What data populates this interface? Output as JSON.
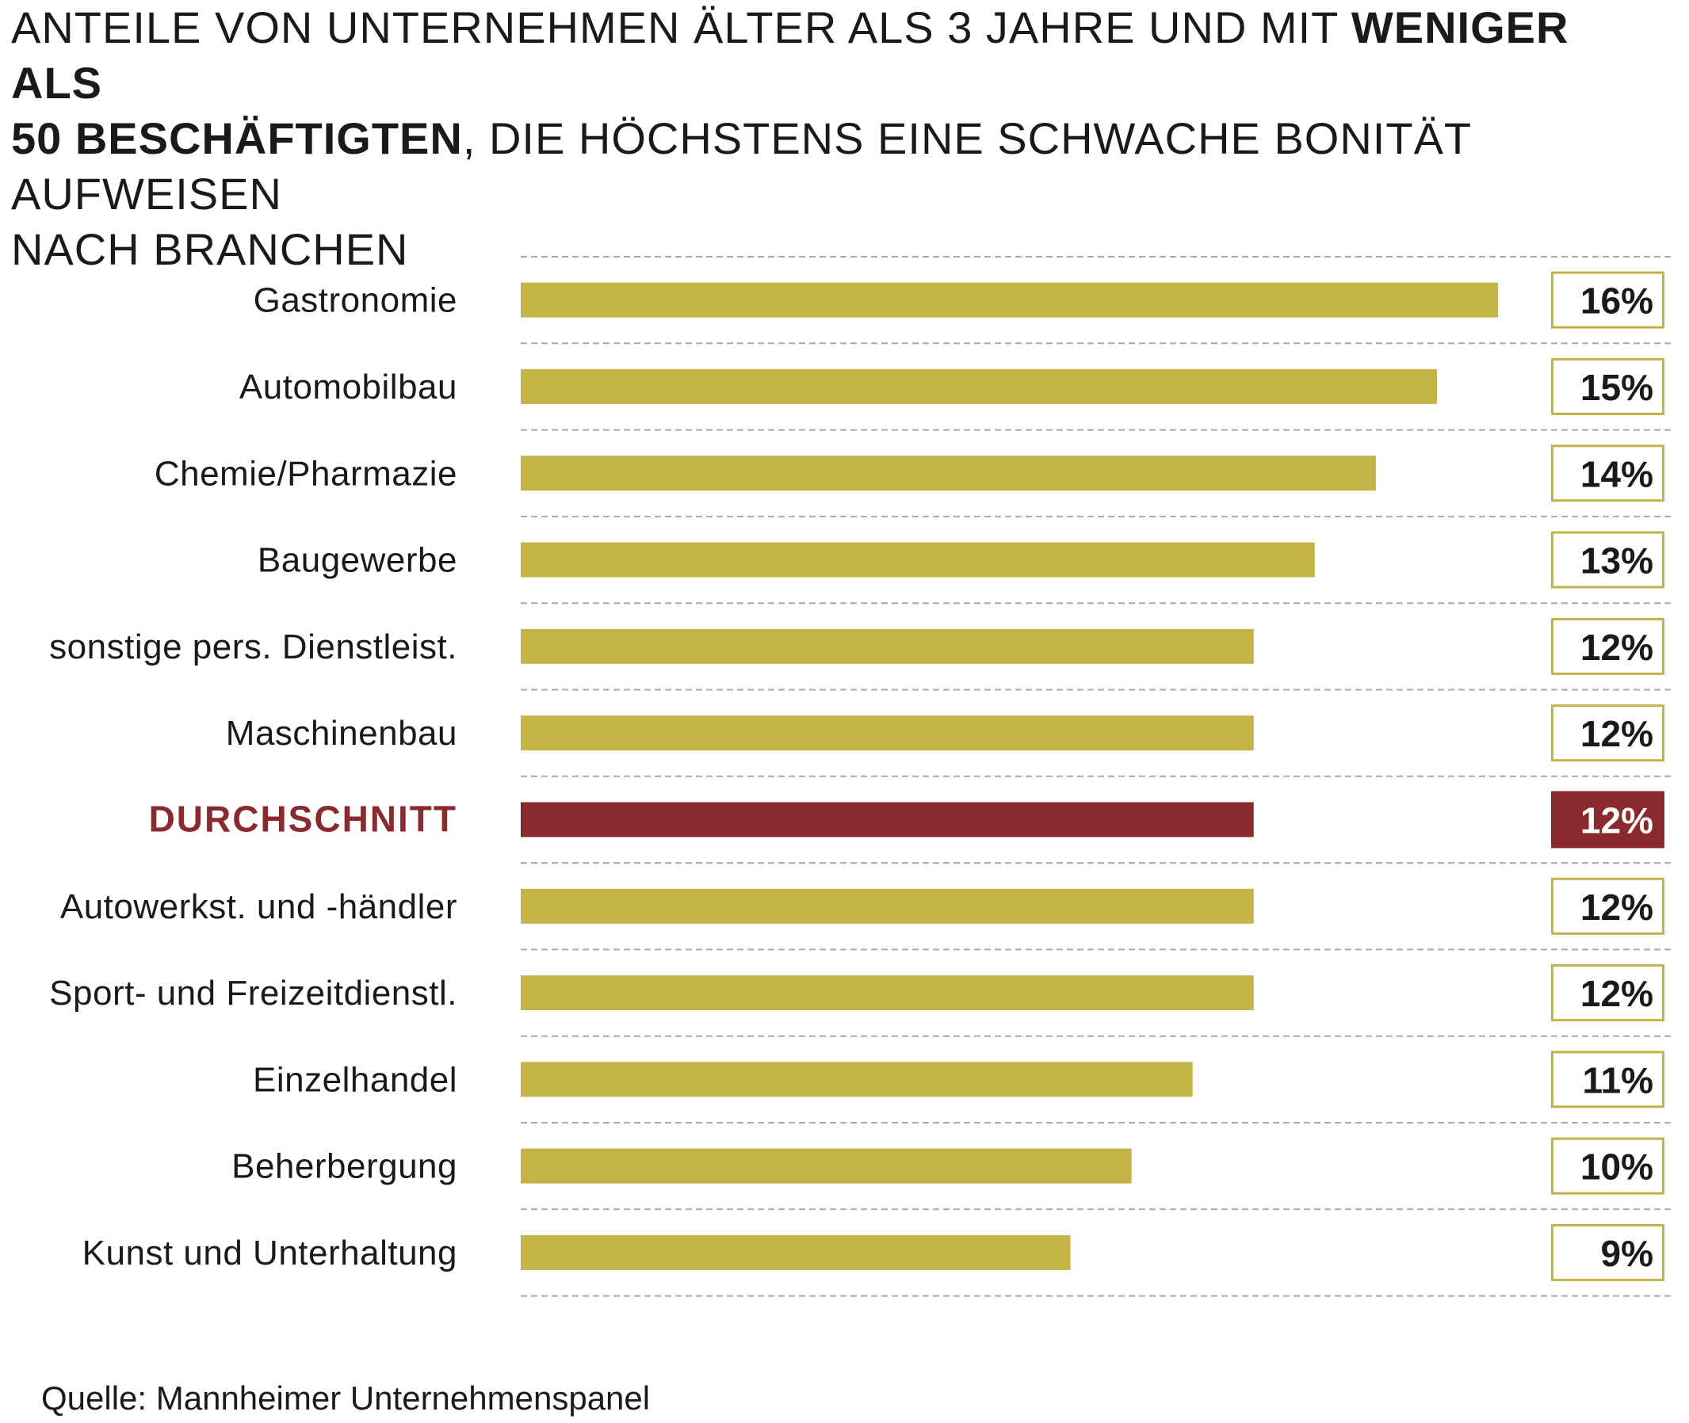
{
  "title": {
    "part1": "ANTEILE VON UNTERNEHMEN ÄLTER ALS 3 JAHRE UND MIT ",
    "bold1": "WENIGER ALS",
    "bold2": "50 BESCHÄFTIGTEN",
    "part2": ", DIE HÖCHSTENS EINE SCHWACHE BONITÄT AUFWEISEN",
    "part3": "NACH BRANCHEN"
  },
  "source": "Quelle: Mannheimer Unternehmenspanel",
  "colors": {
    "bar": "#c4b446",
    "highlight": "#8b2a2e",
    "grid": "#aaaaaa"
  },
  "chart_data": {
    "type": "bar",
    "orientation": "horizontal",
    "categories": [
      "Gastronomie",
      "Automobilbau",
      "Chemie/Pharmazie",
      "Baugewerbe",
      "sonstige pers. Dienstleist.",
      "Maschinenbau",
      "DURCHSCHNITT",
      "Autowerkst. und -händler",
      "Sport- und Freizeitdienstl.",
      "Einzelhandel",
      "Beherbergung",
      "Kunst und Unterhaltung"
    ],
    "values": [
      16,
      15,
      14,
      13,
      12,
      12,
      12,
      12,
      12,
      11,
      10,
      9
    ],
    "value_labels": [
      "16%",
      "15%",
      "14%",
      "13%",
      "12%",
      "12%",
      "12%",
      "12%",
      "12%",
      "11%",
      "10%",
      "9%"
    ],
    "highlight": "DURCHSCHNITT",
    "xlim": [
      0,
      16
    ],
    "grid": true
  }
}
